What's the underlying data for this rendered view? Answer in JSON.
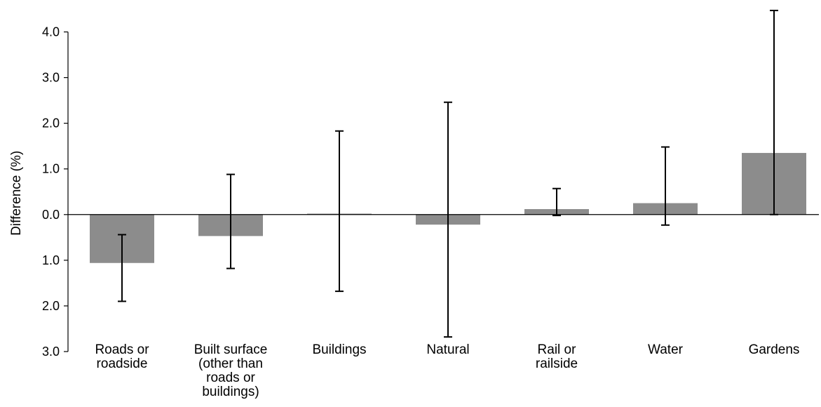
{
  "chart_data": {
    "type": "bar",
    "title": "",
    "xlabel": "",
    "ylabel": "Difference (%)",
    "ylim": [
      -3.0,
      4.0
    ],
    "y_ticks": [
      4.0,
      3.0,
      2.0,
      1.0,
      0.0,
      -1.0,
      -2.0,
      -3.0
    ],
    "y_tick_labels": [
      "4.0",
      "3.0",
      "2.0",
      "1.0",
      "0.0",
      "1.0",
      "2.0",
      "3.0"
    ],
    "grid": false,
    "legend": "none",
    "categories": [
      [
        "Roads or",
        "roadside"
      ],
      [
        "Built surface",
        "(other than",
        "roads or",
        "buildings)"
      ],
      [
        "Buildings"
      ],
      [
        "Natural"
      ],
      [
        "Rail or",
        "railside"
      ],
      [
        "Water"
      ],
      [
        "Gardens"
      ]
    ],
    "values": [
      -1.06,
      -0.47,
      0.02,
      -0.22,
      0.12,
      0.25,
      1.35
    ],
    "error_low": [
      -1.9,
      -1.18,
      -1.68,
      -2.68,
      -0.02,
      -0.23,
      0.0
    ],
    "error_high": [
      -0.44,
      0.88,
      1.83,
      2.46,
      0.57,
      1.48,
      4.47
    ],
    "bar_color": "#8c8c8c",
    "axis_color": "#000000"
  }
}
